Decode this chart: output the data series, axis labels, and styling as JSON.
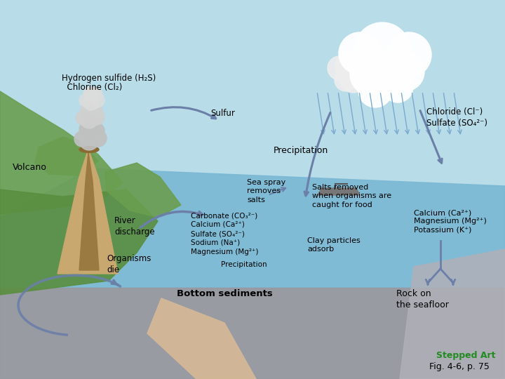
{
  "bg_color": "#b8dce8",
  "ocean_color": "#7ab8d4",
  "land_color": "#6a9e4f",
  "land2_color": "#5a8e3f",
  "seafloor_color": "#9898a0",
  "trench_color": "#d4b896",
  "volcano_color": "#c8a86e",
  "volcano_stripe": "#9b7a42",
  "arrow_color": "#6b7fa8",
  "text_color": "#000000",
  "labels": {
    "h2s_cl2_line1": "Hydrogen sulfide (H₂S)",
    "h2s_cl2_line2": "  Chlorine (Cl₂)",
    "sulfur": "Sulfur",
    "volcano": "Volcano",
    "precipitation_top": "Precipitation",
    "chloride_sulfate": "Chloride (Cl⁻)\nSulfate (SO₄²⁻)",
    "river_discharge": "River\ndischarge",
    "organisms_die": "Organisms\ndie",
    "sea_spray": "Sea spray\nremoves\nsalts",
    "salts_removed": "Salts removed\nwhen organisms are\ncaught for food",
    "calcium_mg_k": "Calcium (Ca²⁺)\nMagnesium (Mg²⁺)\nPotassium (K⁺)",
    "carbonate": "Carbonate (CO₃²⁻)",
    "calcium": "Calcium (Ca²⁺)",
    "sulfate": "Sulfate (SO₄²⁻)",
    "sodium": "Sodium (Na⁺)",
    "magnesium": "Magnesium (Mg²⁺)",
    "precipitation_bottom": "Precipitation",
    "clay_particles": "Clay particles\nadsorb",
    "bottom_sediments": "Bottom sediments",
    "rock_seafloor": "Rock on\nthe seafloor",
    "stepped_art": "Stepped Art",
    "fig_ref": "Fig. 4-6, p. 75"
  }
}
